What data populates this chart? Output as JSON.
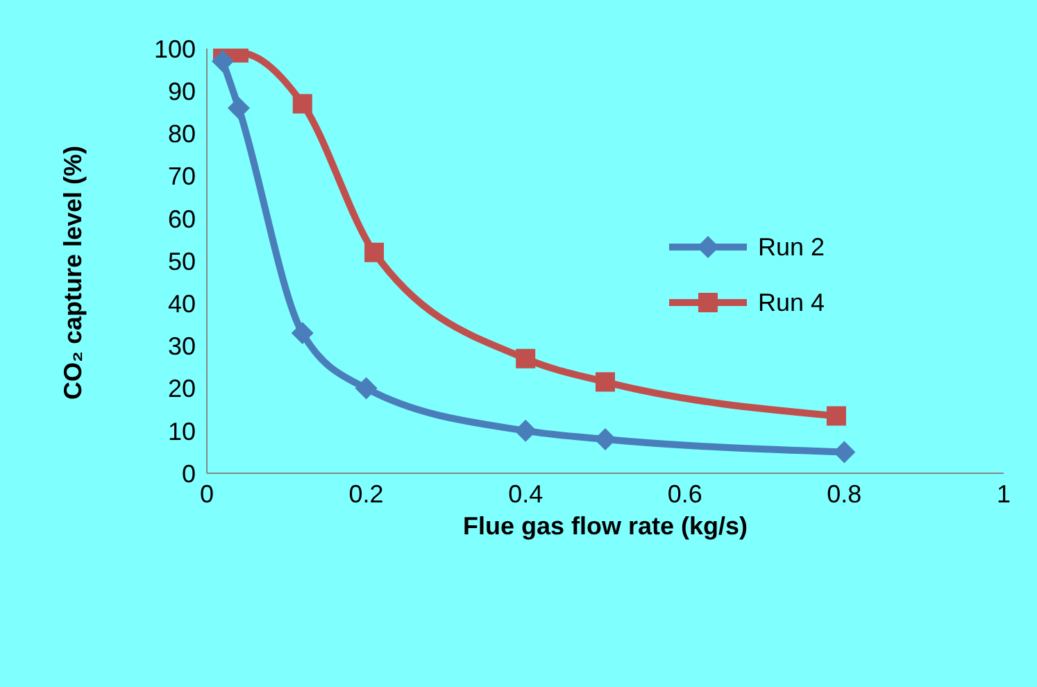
{
  "chart_data": {
    "type": "line",
    "xlabel": "Flue gas flow rate (kg/s)",
    "ylabel": "CO₂ capture level (%)",
    "xlim": [
      0,
      1
    ],
    "xticks": [
      0,
      0.2,
      0.4,
      0.6,
      0.8,
      1
    ],
    "ylim": [
      0,
      100
    ],
    "yticks": [
      0,
      10,
      20,
      30,
      40,
      50,
      60,
      70,
      80,
      90,
      100
    ],
    "grid": false,
    "legend": "right",
    "series": [
      {
        "name": "Run 2",
        "color": "#4a7ebb",
        "marker": "diamond",
        "x": [
          0.02,
          0.04,
          0.12,
          0.2,
          0.4,
          0.5,
          0.8
        ],
        "values": [
          97,
          86,
          33,
          20,
          10,
          8,
          5
        ]
      },
      {
        "name": "Run 4",
        "color": "#c0504d",
        "marker": "square",
        "x": [
          0.02,
          0.04,
          0.12,
          0.21,
          0.4,
          0.5,
          0.79
        ],
        "values": [
          99,
          99,
          87,
          52,
          27,
          21.5,
          13.5
        ]
      }
    ]
  }
}
